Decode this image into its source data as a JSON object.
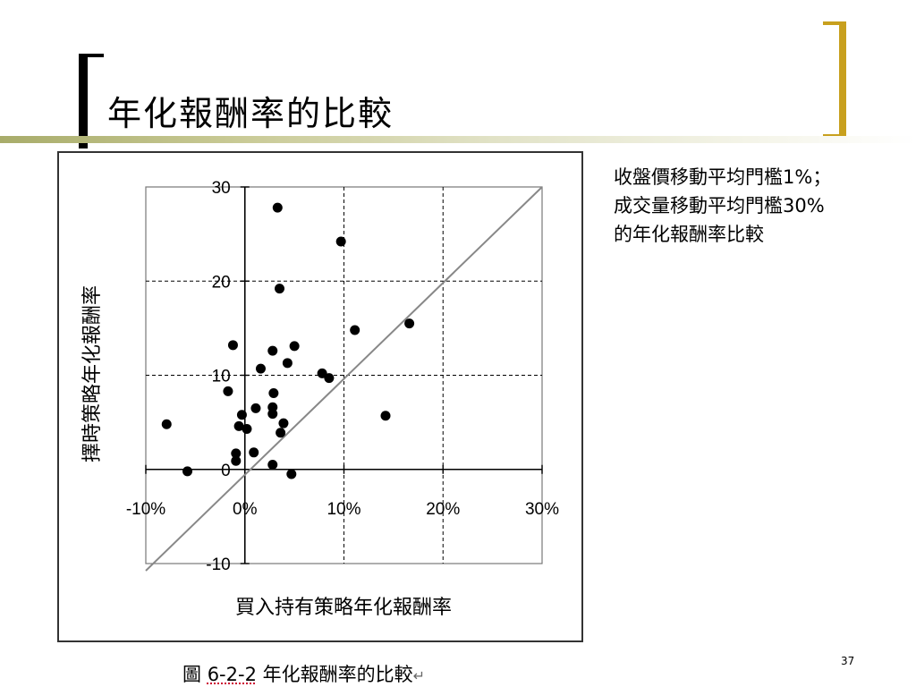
{
  "slide": {
    "title": "年化報酬率的比較",
    "note_lines": [
      "收盤價移動平均門檻1%；",
      "成交量移動平均門檻30%",
      "的年化報酬率比較"
    ],
    "page_number": "37",
    "caption": {
      "prefix": "圖 ",
      "number": "6-2-2",
      "text": "  年化報酬率的比較",
      "mark": "↵"
    },
    "accent_color": "#c8a01e"
  },
  "chart_data": {
    "type": "scatter",
    "xlabel": "買入持有策略年化報酬率",
    "ylabel": "擇時策略年化報酬率",
    "xlim": [
      -10,
      30
    ],
    "ylim": [
      -10,
      30
    ],
    "x_tick_labels": [
      "-10%",
      "0%",
      "10%",
      "20%",
      "30%"
    ],
    "y_tick_labels": [
      "-10",
      "0",
      "10",
      "20",
      "30"
    ],
    "grid": true,
    "diagonal_reference": true,
    "points": [
      {
        "x": 3.3,
        "y": 27.8
      },
      {
        "x": 9.7,
        "y": 24.2
      },
      {
        "x": 3.5,
        "y": 19.2
      },
      {
        "x": 16.6,
        "y": 15.5
      },
      {
        "x": 11.1,
        "y": 14.8
      },
      {
        "x": -1.2,
        "y": 13.2
      },
      {
        "x": 5.0,
        "y": 13.1
      },
      {
        "x": 2.8,
        "y": 12.6
      },
      {
        "x": 4.3,
        "y": 11.3
      },
      {
        "x": 1.6,
        "y": 10.7
      },
      {
        "x": 7.8,
        "y": 10.2
      },
      {
        "x": 8.5,
        "y": 9.7
      },
      {
        "x": -1.7,
        "y": 8.3
      },
      {
        "x": 2.9,
        "y": 8.1
      },
      {
        "x": 2.8,
        "y": 6.6
      },
      {
        "x": 1.1,
        "y": 6.5
      },
      {
        "x": 14.2,
        "y": 5.7
      },
      {
        "x": -0.3,
        "y": 5.8
      },
      {
        "x": 2.8,
        "y": 5.9
      },
      {
        "x": 3.9,
        "y": 4.9
      },
      {
        "x": -0.6,
        "y": 4.6
      },
      {
        "x": 0.2,
        "y": 4.3
      },
      {
        "x": 3.6,
        "y": 3.9
      },
      {
        "x": -7.9,
        "y": 4.8
      },
      {
        "x": -0.9,
        "y": 1.7
      },
      {
        "x": 0.9,
        "y": 1.8
      },
      {
        "x": -0.9,
        "y": 0.9
      },
      {
        "x": 2.8,
        "y": 0.5
      },
      {
        "x": -5.8,
        "y": -0.2
      },
      {
        "x": 4.7,
        "y": -0.5
      }
    ]
  }
}
